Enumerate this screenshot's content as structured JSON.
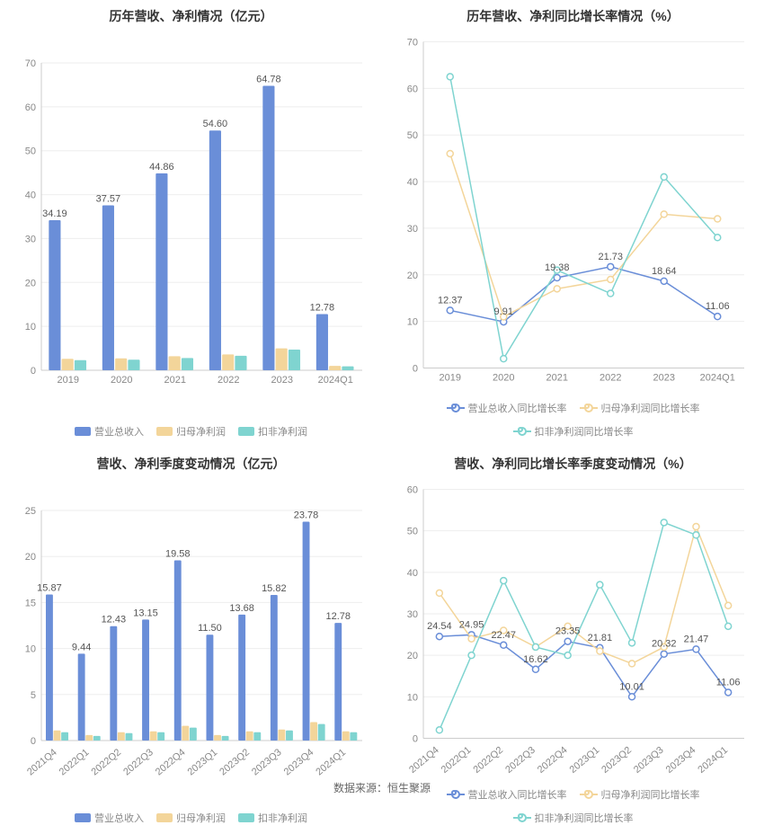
{
  "colors": {
    "blue": "#6a8ed8",
    "yellow": "#f3d59a",
    "teal": "#7fd4d0",
    "grid": "#eeeeee",
    "axis": "#cccccc",
    "text_axis": "#888888",
    "text_label": "#555555",
    "bg": "#ffffff"
  },
  "footer": "数据来源：恒生聚源",
  "charts": {
    "tl": {
      "type": "bar",
      "title": "历年营收、净利情况（亿元）",
      "categories": [
        "2019",
        "2020",
        "2021",
        "2022",
        "2023",
        "2024Q1"
      ],
      "series": [
        {
          "name": "营业总收入",
          "color": "#6a8ed8",
          "values": [
            34.19,
            37.57,
            44.86,
            54.6,
            64.78,
            12.78
          ]
        },
        {
          "name": "归母净利润",
          "color": "#f3d59a",
          "values": [
            2.6,
            2.7,
            3.2,
            3.6,
            5.0,
            1.0
          ]
        },
        {
          "name": "扣非净利润",
          "color": "#7fd4d0",
          "values": [
            2.3,
            2.4,
            2.8,
            3.3,
            4.7,
            0.9
          ]
        }
      ],
      "data_labels": [
        "34.19",
        "37.57",
        "44.86",
        "54.60",
        "64.78",
        "12.78"
      ],
      "ylim": [
        0,
        70
      ],
      "ytick_step": 10,
      "bar_group_width": 0.72,
      "title_fontsize": 14,
      "label_fontsize": 11
    },
    "tr": {
      "type": "line",
      "title": "历年营收、净利同比增长率情况（%）",
      "categories": [
        "2019",
        "2020",
        "2021",
        "2022",
        "2023",
        "2024Q1"
      ],
      "series": [
        {
          "name": "营业总收入同比增长率",
          "color": "#6a8ed8",
          "values": [
            12.37,
            9.91,
            19.38,
            21.73,
            18.64,
            11.06
          ]
        },
        {
          "name": "归母净利润同比增长率",
          "color": "#f3d59a",
          "values": [
            46,
            11,
            17,
            19,
            33,
            32
          ]
        },
        {
          "name": "扣非净利润同比增长率",
          "color": "#7fd4d0",
          "values": [
            62.5,
            2,
            21,
            16,
            41,
            28
          ]
        }
      ],
      "data_labels": [
        "12.37",
        "9.91",
        "19.38",
        "21.73",
        "18.64",
        "11.06"
      ],
      "ylim": [
        0,
        70
      ],
      "ytick_step": 10,
      "marker_radius": 3.5,
      "line_width": 1.5,
      "title_fontsize": 14,
      "label_fontsize": 11
    },
    "bl": {
      "type": "bar",
      "title": "营收、净利季度变动情况（亿元）",
      "categories": [
        "2021Q4",
        "2022Q1",
        "2022Q2",
        "2022Q3",
        "2022Q4",
        "2023Q1",
        "2023Q2",
        "2023Q3",
        "2023Q4",
        "2024Q1"
      ],
      "series": [
        {
          "name": "营业总收入",
          "color": "#6a8ed8",
          "values": [
            15.87,
            9.44,
            12.43,
            13.15,
            19.58,
            11.5,
            13.68,
            15.82,
            23.78,
            12.78
          ]
        },
        {
          "name": "归母净利润",
          "color": "#f3d59a",
          "values": [
            1.1,
            0.6,
            0.9,
            1.0,
            1.6,
            0.6,
            1.0,
            1.2,
            2.0,
            1.0
          ]
        },
        {
          "name": "扣非净利润",
          "color": "#7fd4d0",
          "values": [
            0.9,
            0.5,
            0.8,
            0.9,
            1.4,
            0.5,
            0.9,
            1.1,
            1.8,
            0.9
          ]
        }
      ],
      "data_labels": [
        "15.87",
        "9.44",
        "12.43",
        "13.15",
        "19.58",
        "11.50",
        "13.68",
        "15.82",
        "23.78",
        "12.78"
      ],
      "ylim": [
        0,
        25
      ],
      "ytick_step": 5,
      "bar_group_width": 0.72,
      "x_label_rotate": -40,
      "title_fontsize": 14,
      "label_fontsize": 11
    },
    "br": {
      "type": "line",
      "title": "营收、净利同比增长率季度变动情况（%）",
      "categories": [
        "2021Q4",
        "2022Q1",
        "2022Q2",
        "2022Q3",
        "2022Q4",
        "2023Q1",
        "2023Q2",
        "2023Q3",
        "2023Q4",
        "2024Q1"
      ],
      "series": [
        {
          "name": "营业总收入同比增长率",
          "color": "#6a8ed8",
          "values": [
            24.54,
            24.95,
            22.47,
            16.62,
            23.35,
            21.81,
            10.01,
            20.32,
            21.47,
            11.06
          ]
        },
        {
          "name": "归母净利润同比增长率",
          "color": "#f3d59a",
          "values": [
            35,
            24,
            26,
            22,
            27,
            21,
            18,
            22,
            51,
            32
          ]
        },
        {
          "name": "扣非净利润同比增长率",
          "color": "#7fd4d0",
          "values": [
            2,
            20,
            38,
            22,
            20,
            37,
            23,
            52,
            49,
            27
          ]
        }
      ],
      "data_labels": [
        "24.54",
        "24.95",
        "22.47",
        "16.62",
        "23.35",
        "21.81",
        "10.01",
        "20.32",
        "21.47",
        "11.06"
      ],
      "ylim": [
        0,
        60
      ],
      "ytick_step": 10,
      "marker_radius": 3.5,
      "line_width": 1.5,
      "x_label_rotate": -40,
      "title_fontsize": 14,
      "label_fontsize": 11
    }
  }
}
